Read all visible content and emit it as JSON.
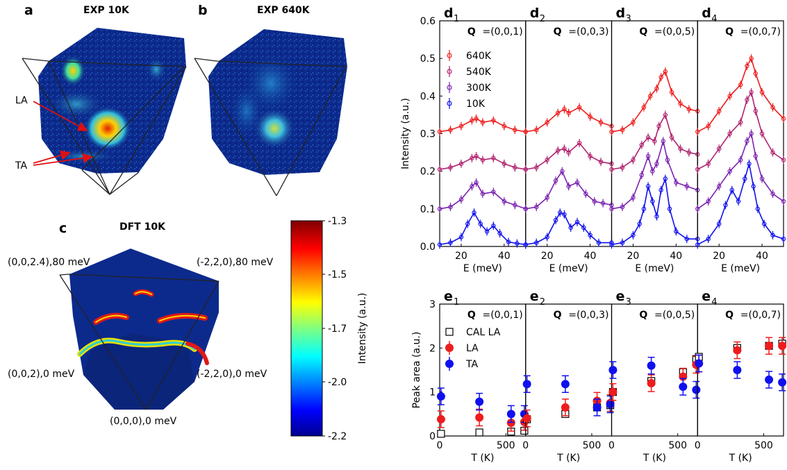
{
  "panels": {
    "a": {
      "letter": "a",
      "title": "EXP 10K",
      "la_label": "LA",
      "ta_label": "TA"
    },
    "b": {
      "letter": "b",
      "title": "EXP 640K"
    },
    "c": {
      "letter": "c",
      "title": "DFT 10K",
      "corner_labels": {
        "top_left": "(0,0,2.4),80 meV",
        "top_right": "(-2,2,0),80 meV",
        "mid_left": "(0,0,2),0 meV",
        "mid_right": "(-2,2,0),0 meV",
        "bottom": "(0,0,0),0 meV"
      }
    }
  },
  "colorbar": {
    "label": "Intensity (a.u.)",
    "ticks": [
      "-1.3",
      "-1.5",
      "-1.7",
      "-2.0",
      "-2.2"
    ],
    "colormap": "jet"
  },
  "colors": {
    "640K": "#ee1c1c",
    "540K": "#b0226e",
    "300K": "#7a22b0",
    "10K": "#1010ee",
    "LA": "#ee1c1c",
    "TA": "#1010ee",
    "CAL": "#000000"
  },
  "chart_data": [
    {
      "id": "d",
      "type": "line",
      "ylabel": "Intensity (a.u.)",
      "xlabel": "E (meV)",
      "ylim": [
        0,
        0.6
      ],
      "xlim": [
        10,
        50
      ],
      "yticks": [
        "0.0",
        "0.1",
        "0.2",
        "0.3",
        "0.4",
        "0.5",
        "0.6"
      ],
      "xticks": [
        "20",
        "40"
      ],
      "legend": [
        "640K",
        "540K",
        "300K",
        "10K"
      ],
      "subpanels": [
        {
          "letter": "d",
          "sub": "1",
          "q_bold": "Q",
          "q_rest": "=(0,0,1)",
          "series": [
            {
              "name": "640K",
              "x": [
                10,
                15,
                20,
                25,
                27,
                30,
                35,
                40,
                45,
                50
              ],
              "y": [
                0.305,
                0.31,
                0.32,
                0.335,
                0.34,
                0.33,
                0.335,
                0.32,
                0.31,
                0.305
              ]
            },
            {
              "name": "540K",
              "x": [
                10,
                15,
                20,
                25,
                27,
                30,
                35,
                40,
                45,
                50
              ],
              "y": [
                0.205,
                0.21,
                0.22,
                0.235,
                0.24,
                0.23,
                0.235,
                0.22,
                0.21,
                0.205
              ]
            },
            {
              "name": "300K",
              "x": [
                10,
                15,
                20,
                25,
                27,
                30,
                35,
                40,
                45,
                50
              ],
              "y": [
                0.1,
                0.105,
                0.125,
                0.16,
                0.17,
                0.14,
                0.145,
                0.12,
                0.11,
                0.1
              ]
            },
            {
              "name": "10K",
              "x": [
                10,
                15,
                20,
                23,
                26,
                29,
                32,
                35,
                38,
                42,
                46,
                50
              ],
              "y": [
                0.005,
                0.01,
                0.025,
                0.06,
                0.09,
                0.06,
                0.04,
                0.055,
                0.035,
                0.012,
                0.008,
                0.005
              ]
            }
          ]
        },
        {
          "letter": "d",
          "sub": "2",
          "q_bold": "Q",
          "q_rest": "=(0,0,3)",
          "series": [
            {
              "name": "640K",
              "x": [
                10,
                15,
                20,
                25,
                28,
                30,
                35,
                40,
                45,
                50
              ],
              "y": [
                0.305,
                0.31,
                0.33,
                0.355,
                0.365,
                0.355,
                0.37,
                0.345,
                0.33,
                0.32
              ]
            },
            {
              "name": "540K",
              "x": [
                10,
                15,
                20,
                25,
                28,
                30,
                35,
                40,
                45,
                50
              ],
              "y": [
                0.205,
                0.21,
                0.23,
                0.255,
                0.26,
                0.25,
                0.275,
                0.24,
                0.225,
                0.22
              ]
            },
            {
              "name": "300K",
              "x": [
                10,
                15,
                20,
                24,
                27,
                30,
                34,
                38,
                42,
                46,
                50
              ],
              "y": [
                0.1,
                0.105,
                0.13,
                0.175,
                0.2,
                0.16,
                0.17,
                0.14,
                0.12,
                0.115,
                0.11
              ]
            },
            {
              "name": "10K",
              "x": [
                10,
                15,
                20,
                24,
                26,
                28,
                31,
                34,
                37,
                40,
                44,
                50
              ],
              "y": [
                0.005,
                0.01,
                0.025,
                0.07,
                0.09,
                0.085,
                0.05,
                0.065,
                0.05,
                0.03,
                0.01,
                0.01
              ]
            }
          ]
        },
        {
          "letter": "d",
          "sub": "3",
          "q_bold": "Q",
          "q_rest": "=(0,0,5)",
          "series": [
            {
              "name": "640K",
              "x": [
                10,
                15,
                20,
                25,
                28,
                31,
                33,
                35,
                38,
                42,
                46,
                50
              ],
              "y": [
                0.305,
                0.31,
                0.33,
                0.37,
                0.4,
                0.42,
                0.45,
                0.465,
                0.41,
                0.38,
                0.365,
                0.36
              ]
            },
            {
              "name": "540K",
              "x": [
                10,
                15,
                20,
                24,
                27,
                30,
                32,
                35,
                38,
                42,
                46,
                50
              ],
              "y": [
                0.205,
                0.21,
                0.23,
                0.27,
                0.29,
                0.28,
                0.32,
                0.35,
                0.29,
                0.26,
                0.25,
                0.245
              ]
            },
            {
              "name": "300K",
              "x": [
                10,
                15,
                20,
                24,
                27,
                29,
                31,
                34,
                36,
                40,
                45,
                50
              ],
              "y": [
                0.1,
                0.105,
                0.13,
                0.19,
                0.24,
                0.2,
                0.22,
                0.28,
                0.23,
                0.17,
                0.16,
                0.15
              ]
            },
            {
              "name": "10K",
              "x": [
                10,
                15,
                20,
                23,
                25,
                27,
                29,
                31,
                33,
                35,
                37,
                40,
                45,
                50
              ],
              "y": [
                0.005,
                0.01,
                0.03,
                0.06,
                0.1,
                0.16,
                0.12,
                0.08,
                0.15,
                0.18,
                0.1,
                0.04,
                0.02,
                0.02
              ]
            }
          ]
        },
        {
          "letter": "d",
          "sub": "4",
          "q_bold": "Q",
          "q_rest": "=(0,0,7)",
          "series": [
            {
              "name": "640K",
              "x": [
                10,
                15,
                20,
                25,
                30,
                33,
                35,
                37,
                40,
                45,
                50
              ],
              "y": [
                0.305,
                0.32,
                0.36,
                0.4,
                0.43,
                0.48,
                0.5,
                0.46,
                0.41,
                0.37,
                0.34
              ]
            },
            {
              "name": "540K",
              "x": [
                10,
                15,
                20,
                25,
                30,
                33,
                35,
                37,
                40,
                45,
                50
              ],
              "y": [
                0.205,
                0.22,
                0.26,
                0.3,
                0.33,
                0.39,
                0.41,
                0.36,
                0.3,
                0.25,
                0.23
              ]
            },
            {
              "name": "300K",
              "x": [
                10,
                15,
                20,
                25,
                30,
                33,
                35,
                37,
                40,
                45,
                50
              ],
              "y": [
                0.1,
                0.12,
                0.16,
                0.2,
                0.23,
                0.28,
                0.3,
                0.24,
                0.18,
                0.14,
                0.12
              ]
            },
            {
              "name": "10K",
              "x": [
                10,
                15,
                20,
                23,
                26,
                29,
                32,
                34,
                36,
                38,
                41,
                45,
                50
              ],
              "y": [
                0.005,
                0.02,
                0.06,
                0.11,
                0.15,
                0.12,
                0.18,
                0.22,
                0.16,
                0.1,
                0.06,
                0.03,
                0.02
              ]
            }
          ]
        }
      ]
    },
    {
      "id": "e",
      "type": "scatter",
      "ylabel": "Peak area (a.u.)",
      "xlabel": "T (K)",
      "ylim": [
        0,
        3
      ],
      "xlim": [
        0,
        650
      ],
      "yticks": [
        "0",
        "1",
        "2",
        "3"
      ],
      "xticks": [
        "0",
        "500"
      ],
      "legend": [
        "CAL LA",
        "LA",
        "TA"
      ],
      "subpanels": [
        {
          "letter": "e",
          "sub": "1",
          "q_bold": "Q",
          "q_rest": "=(0,0,1)",
          "series": [
            {
              "name": "CAL LA",
              "x": [
                10,
                300,
                540,
                640
              ],
              "y": [
                0.05,
                0.08,
                0.1,
                0.12
              ]
            },
            {
              "name": "LA",
              "x": [
                10,
                300,
                540,
                640
              ],
              "y": [
                0.38,
                0.42,
                0.3,
                0.32
              ]
            },
            {
              "name": "TA",
              "x": [
                10,
                300,
                540,
                640
              ],
              "y": [
                0.9,
                0.78,
                0.5,
                0.5
              ]
            }
          ]
        },
        {
          "letter": "e",
          "sub": "2",
          "q_bold": "Q",
          "q_rest": "=(0,0,3)",
          "series": [
            {
              "name": "CAL LA",
              "x": [
                10,
                300,
                540,
                640
              ],
              "y": [
                0.38,
                0.5,
                0.65,
                0.7
              ]
            },
            {
              "name": "LA",
              "x": [
                10,
                300,
                540,
                640
              ],
              "y": [
                0.4,
                0.65,
                0.8,
                0.75
              ]
            },
            {
              "name": "TA",
              "x": [
                10,
                300,
                540,
                640
              ],
              "y": [
                1.18,
                1.18,
                0.65,
                0.72
              ]
            }
          ]
        },
        {
          "letter": "e",
          "sub": "3",
          "q_bold": "Q",
          "q_rest": "=(0,0,5)",
          "series": [
            {
              "name": "CAL LA",
              "x": [
                10,
                300,
                540,
                640
              ],
              "y": [
                1.0,
                1.25,
                1.45,
                1.75
              ]
            },
            {
              "name": "LA",
              "x": [
                10,
                300,
                540,
                640
              ],
              "y": [
                1.0,
                1.2,
                1.35,
                1.62
              ]
            },
            {
              "name": "TA",
              "x": [
                10,
                300,
                540,
                640
              ],
              "y": [
                1.5,
                1.6,
                1.12,
                1.05
              ]
            }
          ]
        },
        {
          "letter": "e",
          "sub": "4",
          "q_bold": "Q",
          "q_rest": "=(0,0,7)",
          "series": [
            {
              "name": "CAL LA",
              "x": [
                10,
                300,
                540,
                640
              ],
              "y": [
                1.8,
                2.0,
                2.05,
                2.1
              ]
            },
            {
              "name": "LA",
              "x": [
                10,
                300,
                540,
                640
              ],
              "y": [
                1.65,
                1.95,
                2.05,
                2.05
              ]
            },
            {
              "name": "TA",
              "x": [
                10,
                300,
                540,
                640
              ],
              "y": [
                1.65,
                1.5,
                1.28,
                1.22
              ]
            }
          ]
        }
      ]
    }
  ]
}
